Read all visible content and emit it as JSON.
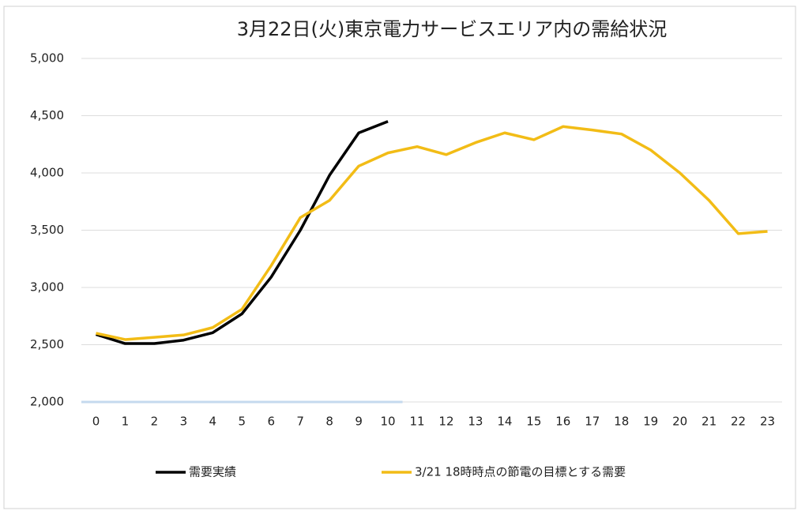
{
  "chart_data": {
    "type": "line",
    "title": "3月22日(火)東京電力サービスエリア内の需給状況",
    "categories": [
      "0",
      "1",
      "2",
      "3",
      "4",
      "5",
      "6",
      "7",
      "8",
      "9",
      "10",
      "11",
      "12",
      "13",
      "14",
      "15",
      "16",
      "17",
      "18",
      "19",
      "20",
      "21",
      "22",
      "23"
    ],
    "series": [
      {
        "name": "需要実績",
        "color": "#000000",
        "values": [
          2590,
          2510,
          2510,
          2540,
          2605,
          2770,
          3090,
          3500,
          3980,
          4350,
          4450,
          null,
          null,
          null,
          null,
          null,
          null,
          null,
          null,
          null,
          null,
          null,
          null,
          null
        ]
      },
      {
        "name": "3/21 18時時点の節電の目標とする需要",
        "color": "#f2bc16",
        "values": [
          2600,
          2545,
          2565,
          2585,
          2650,
          2810,
          3190,
          3610,
          3760,
          4060,
          4175,
          4230,
          4160,
          4265,
          4350,
          4290,
          4405,
          4375,
          4340,
          4200,
          4000,
          3760,
          3470,
          3490
        ]
      }
    ],
    "ylim": [
      2000,
      5000
    ],
    "yticks": [
      {
        "value": 2000,
        "label": "2,000"
      },
      {
        "value": 2500,
        "label": "2,500"
      },
      {
        "value": 3000,
        "label": "3,000"
      },
      {
        "value": 3500,
        "label": "3,500"
      },
      {
        "value": 4000,
        "label": "4,000"
      },
      {
        "value": 4500,
        "label": "4,500"
      },
      {
        "value": 5000,
        "label": "5,000"
      }
    ],
    "grid": true,
    "legend": "bottom"
  }
}
